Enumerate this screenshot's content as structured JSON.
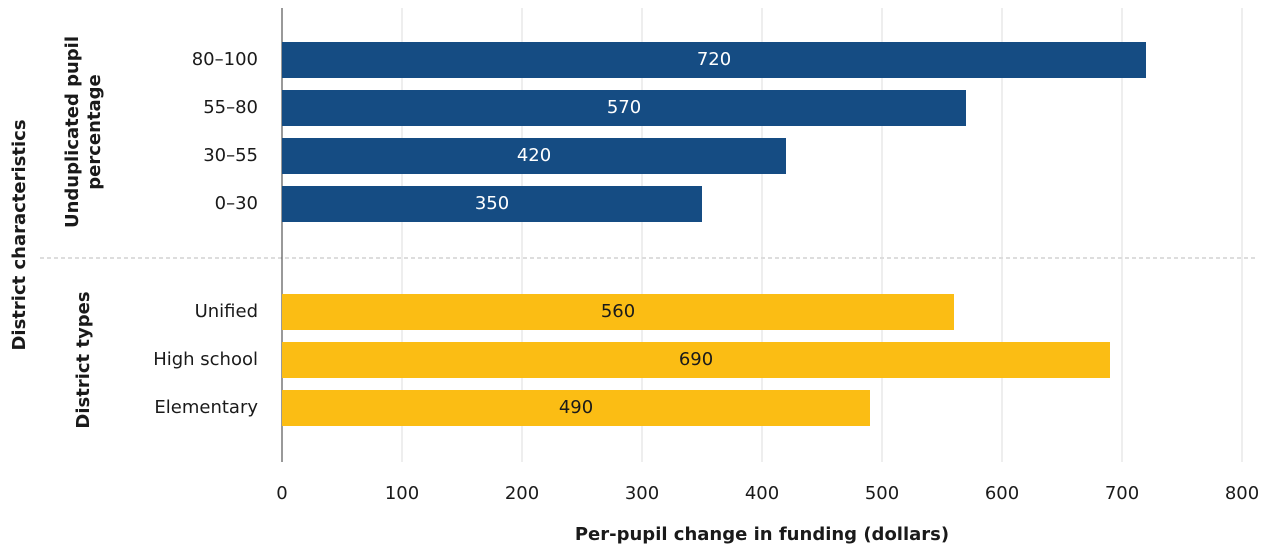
{
  "chart_data": {
    "type": "bar",
    "orientation": "horizontal",
    "y_label": "District characteristics",
    "x_label": "Per-pupil change in funding (dollars)",
    "groups": [
      {
        "name_lines": [
          "Unduplicated pupil",
          "percentage"
        ],
        "color": "#154c83",
        "value_label_color": "#ffffff",
        "categories": [
          "80–100",
          "55–80",
          "30–55",
          "0–30"
        ],
        "values": [
          720,
          570,
          420,
          350
        ]
      },
      {
        "name_lines": [
          "District types"
        ],
        "color": "#fbbd14",
        "value_label_color": "#1a1a1a",
        "categories": [
          "Unified",
          "High school",
          "Elementary"
        ],
        "values": [
          560,
          690,
          490
        ]
      }
    ],
    "xlim": [
      0,
      800
    ],
    "xticks": [
      0,
      100,
      200,
      300,
      400,
      500,
      600,
      700,
      800
    ],
    "grid": true
  }
}
